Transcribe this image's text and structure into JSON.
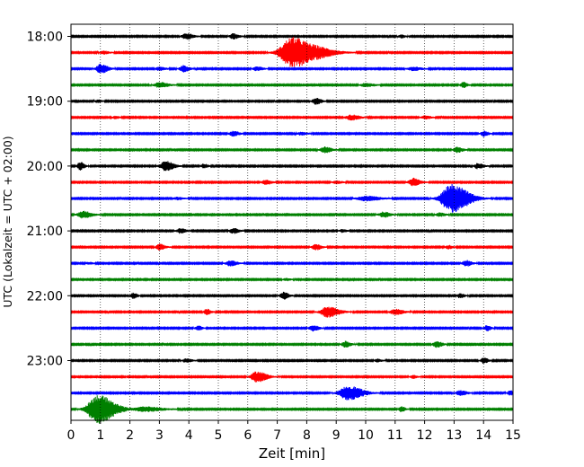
{
  "chart_data": {
    "type": "seismogram-helicorder",
    "xlabel": "Zeit  [min]",
    "ylabel": "UTC (Lokalzeit = UTC + 02:00)",
    "xlim": [
      0,
      15
    ],
    "x_ticks": [
      "0",
      "1",
      "2",
      "3",
      "4",
      "5",
      "6",
      "7",
      "8",
      "9",
      "10",
      "11",
      "12",
      "13",
      "14",
      "15"
    ],
    "y_ticks": [
      "18:00",
      "19:00",
      "20:00",
      "21:00",
      "22:00",
      "23:00"
    ],
    "row_interval_min": 15,
    "rows_start": "18:00",
    "grid": true,
    "colors": [
      "#000000",
      "#ff0000",
      "#0000ff",
      "#008000"
    ],
    "rows": [
      {
        "time": "18:00",
        "color": "#000000",
        "events": [
          [
            3.9,
            0.25,
            0.5
          ],
          [
            5.5,
            0.2,
            0.45
          ],
          [
            11.2,
            0.15,
            0.25
          ]
        ]
      },
      {
        "time": "18:15",
        "color": "#ff0000",
        "events": [
          [
            7.5,
            0.7,
            2.6
          ],
          [
            8.5,
            0.6,
            0.5
          ],
          [
            1.1,
            0.2,
            0.25
          ]
        ]
      },
      {
        "time": "18:30",
        "color": "#0000ff",
        "events": [
          [
            1.0,
            0.25,
            0.8
          ],
          [
            3.8,
            0.2,
            0.55
          ],
          [
            3.0,
            0.2,
            0.3
          ],
          [
            6.3,
            0.2,
            0.35
          ],
          [
            11.6,
            0.3,
            0.3
          ]
        ]
      },
      {
        "time": "18:45",
        "color": "#008000",
        "events": [
          [
            3.0,
            0.3,
            0.45
          ],
          [
            10.0,
            0.3,
            0.3
          ],
          [
            13.3,
            0.15,
            0.45
          ]
        ]
      },
      {
        "time": "19:00",
        "color": "#000000",
        "events": [
          [
            8.3,
            0.2,
            0.55
          ],
          [
            0.9,
            0.15,
            0.25
          ]
        ]
      },
      {
        "time": "19:15",
        "color": "#ff0000",
        "events": [
          [
            9.5,
            0.3,
            0.45
          ],
          [
            12.0,
            0.2,
            0.3
          ],
          [
            1.5,
            0.15,
            0.2
          ]
        ]
      },
      {
        "time": "19:30",
        "color": "#0000ff",
        "events": [
          [
            5.5,
            0.2,
            0.45
          ],
          [
            14.0,
            0.15,
            0.5
          ],
          [
            7.8,
            0.2,
            0.25
          ]
        ]
      },
      {
        "time": "19:45",
        "color": "#008000",
        "events": [
          [
            8.6,
            0.25,
            0.5
          ],
          [
            13.1,
            0.2,
            0.45
          ]
        ]
      },
      {
        "time": "20:00",
        "color": "#000000",
        "events": [
          [
            0.3,
            0.15,
            0.7
          ],
          [
            3.2,
            0.3,
            0.8
          ],
          [
            4.5,
            0.15,
            0.35
          ],
          [
            13.8,
            0.2,
            0.45
          ]
        ]
      },
      {
        "time": "20:15",
        "color": "#ff0000",
        "events": [
          [
            11.6,
            0.25,
            0.7
          ],
          [
            6.6,
            0.2,
            0.4
          ],
          [
            9.0,
            0.2,
            0.25
          ]
        ]
      },
      {
        "time": "20:30",
        "color": "#0000ff",
        "events": [
          [
            12.9,
            0.6,
            2.4
          ],
          [
            10.0,
            0.5,
            0.4
          ],
          [
            3.6,
            0.2,
            0.25
          ]
        ]
      },
      {
        "time": "20:45",
        "color": "#008000",
        "events": [
          [
            0.4,
            0.3,
            0.6
          ],
          [
            10.6,
            0.25,
            0.45
          ],
          [
            12.5,
            0.2,
            0.3
          ]
        ]
      },
      {
        "time": "21:00",
        "color": "#000000",
        "events": [
          [
            3.7,
            0.2,
            0.4
          ],
          [
            5.5,
            0.2,
            0.45
          ],
          [
            9.2,
            0.15,
            0.25
          ]
        ]
      },
      {
        "time": "21:15",
        "color": "#ff0000",
        "events": [
          [
            3.0,
            0.2,
            0.5
          ],
          [
            8.3,
            0.2,
            0.5
          ],
          [
            12.8,
            0.15,
            0.3
          ]
        ]
      },
      {
        "time": "21:30",
        "color": "#0000ff",
        "events": [
          [
            5.4,
            0.25,
            0.45
          ],
          [
            13.4,
            0.2,
            0.5
          ],
          [
            0.6,
            0.15,
            0.2
          ]
        ]
      },
      {
        "time": "21:45",
        "color": "#008000",
        "events": [
          [
            7.3,
            0.15,
            0.2
          ]
        ]
      },
      {
        "time": "22:00",
        "color": "#000000",
        "events": [
          [
            2.1,
            0.15,
            0.45
          ],
          [
            7.2,
            0.2,
            0.6
          ],
          [
            13.2,
            0.15,
            0.4
          ]
        ]
      },
      {
        "time": "22:15",
        "color": "#ff0000",
        "events": [
          [
            8.7,
            0.4,
            0.9
          ],
          [
            4.6,
            0.15,
            0.5
          ],
          [
            11.0,
            0.3,
            0.45
          ]
        ]
      },
      {
        "time": "22:30",
        "color": "#0000ff",
        "events": [
          [
            8.2,
            0.2,
            0.5
          ],
          [
            4.3,
            0.15,
            0.4
          ],
          [
            14.1,
            0.15,
            0.45
          ]
        ]
      },
      {
        "time": "22:45",
        "color": "#008000",
        "events": [
          [
            9.3,
            0.2,
            0.5
          ],
          [
            12.4,
            0.2,
            0.5
          ]
        ]
      },
      {
        "time": "23:00",
        "color": "#000000",
        "events": [
          [
            14.0,
            0.15,
            0.5
          ],
          [
            3.9,
            0.2,
            0.3
          ],
          [
            10.4,
            0.15,
            0.25
          ]
        ]
      },
      {
        "time": "23:15",
        "color": "#ff0000",
        "events": [
          [
            6.3,
            0.35,
            0.9
          ],
          [
            11.6,
            0.15,
            0.25
          ]
        ]
      },
      {
        "time": "23:30",
        "color": "#0000ff",
        "events": [
          [
            9.4,
            0.5,
            1.2
          ],
          [
            13.2,
            0.25,
            0.4
          ],
          [
            14.9,
            0.15,
            0.4
          ]
        ]
      },
      {
        "time": "23:45",
        "color": "#008000",
        "events": [
          [
            0.9,
            0.6,
            2.4
          ],
          [
            2.5,
            0.6,
            0.4
          ],
          [
            11.2,
            0.15,
            0.4
          ]
        ]
      }
    ]
  }
}
